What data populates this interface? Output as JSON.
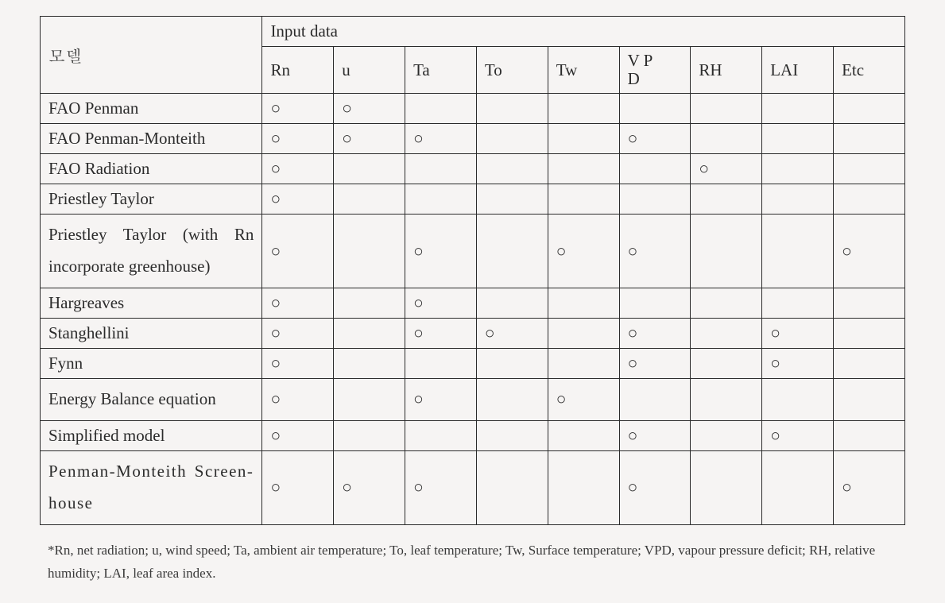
{
  "table": {
    "rowHeader": "모델",
    "spanHeader": "Input data",
    "columns": [
      "Rn",
      "u",
      "Ta",
      "To",
      "Tw",
      "V P\nD",
      "RH",
      "LAI",
      "Etc"
    ],
    "mark": "○",
    "rows": [
      {
        "label": "FAO Penman",
        "cells": [
          1,
          1,
          0,
          0,
          0,
          0,
          0,
          0,
          0
        ]
      },
      {
        "label": "FAO Penman-Monteith",
        "cells": [
          1,
          1,
          1,
          0,
          0,
          1,
          0,
          0,
          0
        ]
      },
      {
        "label": "FAO Radiation",
        "cells": [
          1,
          0,
          0,
          0,
          0,
          0,
          1,
          0,
          0
        ]
      },
      {
        "label": "Priestley Taylor",
        "cells": [
          1,
          0,
          0,
          0,
          0,
          0,
          0,
          0,
          0
        ]
      },
      {
        "label": "Priestley Taylor (with Rn incorporate greenhouse)",
        "multiline": true,
        "cells": [
          1,
          0,
          1,
          0,
          1,
          1,
          0,
          0,
          1
        ]
      },
      {
        "label": "Hargreaves",
        "cells": [
          1,
          0,
          1,
          0,
          0,
          0,
          0,
          0,
          0
        ]
      },
      {
        "label": "Stanghellini",
        "cells": [
          1,
          0,
          1,
          1,
          0,
          1,
          0,
          1,
          0
        ]
      },
      {
        "label": "Fynn",
        "cells": [
          1,
          0,
          0,
          0,
          0,
          1,
          0,
          1,
          0
        ]
      },
      {
        "label": "Energy Balance equation",
        "multiline": true,
        "cells": [
          1,
          0,
          1,
          0,
          1,
          0,
          0,
          0,
          0
        ]
      },
      {
        "label": "Simplified model",
        "cells": [
          1,
          0,
          0,
          0,
          0,
          1,
          0,
          1,
          0
        ]
      },
      {
        "label": "Penman-Monteith Screen-house",
        "multiline": true,
        "letterspace": true,
        "cells": [
          1,
          1,
          1,
          0,
          0,
          1,
          0,
          0,
          1
        ]
      }
    ]
  },
  "footnote": "*Rn, net radiation; u, wind speed; Ta, ambient air temperature; To, leaf temperature; Tw, Surface temperature; VPD, vapour pressure deficit; RH, relative humidity; LAI, leaf area index."
}
